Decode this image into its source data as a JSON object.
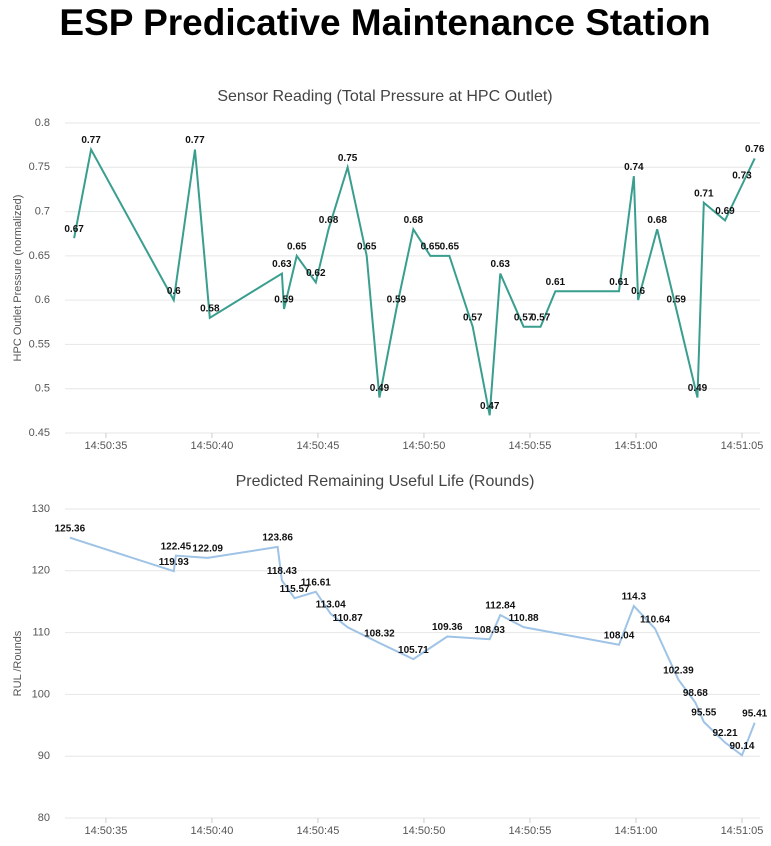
{
  "header": {
    "title": "ESP Predicative Maintenance Station"
  },
  "chart_data": [
    {
      "type": "line",
      "title": "Sensor Reading (Total Pressure at HPC Outlet)",
      "y_label": "HPC Outlet Pressure (normalized)",
      "x": [
        "14:50:33.5",
        "14:50:34.3",
        "14:50:38.2",
        "14:50:39.2",
        "14:50:39.9",
        "14:50:43.3",
        "14:50:43.4",
        "14:50:44.0",
        "14:50:44.9",
        "14:50:45.5",
        "14:50:46.4",
        "14:50:47.3",
        "14:50:47.9",
        "14:50:48.7",
        "14:50:49.5",
        "14:50:50.3",
        "14:50:51.2",
        "14:50:52.3",
        "14:50:53.1",
        "14:50:53.6",
        "14:50:54.7",
        "14:50:55.5",
        "14:50:56.2",
        "14:50:59.2",
        "14:50:59.9",
        "14:51:00.1",
        "14:51:01.0",
        "14:51:01.9",
        "14:51:02.9",
        "14:51:03.2",
        "14:51:04.2",
        "14:51:05.0",
        "14:51:05.6"
      ],
      "series": [
        {
          "color": "#3a9e8f",
          "values": [
            0.67,
            0.77,
            0.6,
            0.77,
            0.58,
            0.63,
            0.59,
            0.65,
            0.62,
            0.68,
            0.75,
            0.65,
            0.49,
            0.59,
            0.68,
            0.65,
            0.65,
            0.57,
            0.47,
            0.63,
            0.57,
            0.57,
            0.61,
            0.61,
            0.74,
            0.6,
            0.68,
            0.59,
            0.49,
            0.71,
            0.69,
            0.73,
            0.76
          ]
        }
      ],
      "xlim": [
        "14:50:33.07",
        "14:51:05.85"
      ],
      "xticks": [
        "14:50:35",
        "14:50:40",
        "14:50:45",
        "14:50:50",
        "14:50:55",
        "14:51:00",
        "14:51:05"
      ],
      "ylim": [
        0.45,
        0.8
      ],
      "yticks": [
        0.45,
        0.5,
        0.55,
        0.6,
        0.65,
        0.7,
        0.75,
        0.8
      ],
      "grid": true
    },
    {
      "type": "line",
      "title": "Predicted Remaining Useful Life (Rounds)",
      "y_label": "RUL /Rounds",
      "x": [
        "14:50:33.3",
        "14:50:38.2",
        "14:50:38.3",
        "14:50:39.8",
        "14:50:43.1",
        "14:50:43.3",
        "14:50:43.9",
        "14:50:44.9",
        "14:50:45.6",
        "14:50:46.4",
        "14:50:47.9",
        "14:50:49.5",
        "14:50:51.1",
        "14:50:53.1",
        "14:50:53.6",
        "14:50:54.7",
        "14:50:59.2",
        "14:50:59.9",
        "14:51:00.9",
        "14:51:02.0",
        "14:51:02.8",
        "14:51:03.2",
        "14:51:04.2",
        "14:51:05.0",
        "14:51:05.6"
      ],
      "series": [
        {
          "color": "#9ec3e6",
          "values": [
            125.36,
            119.93,
            122.45,
            122.09,
            123.86,
            118.43,
            115.57,
            116.61,
            113.04,
            110.87,
            108.32,
            105.71,
            109.36,
            108.93,
            112.84,
            110.88,
            108.04,
            114.3,
            110.64,
            102.39,
            98.68,
            95.55,
            92.21,
            90.14,
            95.41
          ]
        }
      ],
      "xlim": [
        "14:50:33.07",
        "14:51:05.85"
      ],
      "xticks": [
        "14:50:35",
        "14:50:40",
        "14:50:45",
        "14:50:50",
        "14:50:55",
        "14:51:00",
        "14:51:05"
      ],
      "ylim": [
        80,
        130
      ],
      "yticks": [
        80,
        90,
        100,
        110,
        120,
        130
      ],
      "grid": true
    }
  ]
}
